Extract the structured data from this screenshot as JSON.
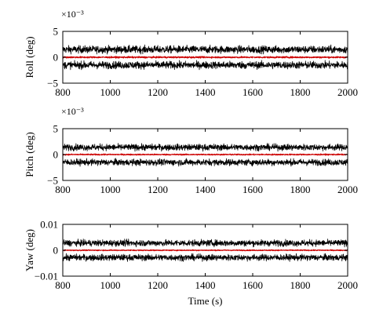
{
  "chart_data": [
    {
      "type": "line",
      "ylabel": "Roll (deg)",
      "xlabel": "",
      "multiplier_label": "×10⁻³",
      "xlim": [
        800,
        2000
      ],
      "ylim": [
        -5,
        5
      ],
      "xticks": [
        800,
        1000,
        1200,
        1400,
        1600,
        1800,
        2000
      ],
      "yticks": [
        {
          "value": 5,
          "label": "5"
        },
        {
          "value": 0,
          "label": "0"
        },
        {
          "value": -5,
          "label": "−5"
        }
      ],
      "series": [
        {
          "color": "#000000",
          "x": [
            800,
            2000
          ],
          "y": [
            1.5,
            1.5
          ],
          "noise_amplitude": 0.7
        },
        {
          "color": "#000000",
          "x": [
            800,
            2000
          ],
          "y": [
            -1.5,
            -1.5
          ],
          "noise_amplitude": 0.7
        },
        {
          "color": "#cc0000",
          "x": [
            800,
            2000
          ],
          "y": [
            0,
            0
          ],
          "noise_amplitude": 0.15
        }
      ]
    },
    {
      "type": "line",
      "ylabel": "Pitch (deg)",
      "xlabel": "",
      "multiplier_label": "×10⁻³",
      "xlim": [
        800,
        2000
      ],
      "ylim": [
        -5,
        5
      ],
      "xticks": [
        800,
        1000,
        1200,
        1400,
        1600,
        1800,
        2000
      ],
      "yticks": [
        {
          "value": 5,
          "label": "5"
        },
        {
          "value": 0,
          "label": "0"
        },
        {
          "value": -5,
          "label": "−5"
        }
      ],
      "series": [
        {
          "color": "#000000",
          "x": [
            800,
            2000
          ],
          "y": [
            1.4,
            1.4
          ],
          "noise_amplitude": 0.6
        },
        {
          "color": "#000000",
          "x": [
            800,
            2000
          ],
          "y": [
            -1.5,
            -1.5
          ],
          "noise_amplitude": 0.6
        },
        {
          "color": "#cc0000",
          "x": [
            800,
            2000
          ],
          "y": [
            0,
            0
          ],
          "noise_amplitude": 0.12
        }
      ]
    },
    {
      "type": "line",
      "ylabel": "Yaw (deg)",
      "xlabel": "Time (s)",
      "multiplier_label": "",
      "xlim": [
        800,
        2000
      ],
      "ylim": [
        -0.01,
        0.01
      ],
      "xticks": [
        800,
        1000,
        1200,
        1400,
        1600,
        1800,
        2000
      ],
      "yticks": [
        {
          "value": 0.01,
          "label": "0.01"
        },
        {
          "value": 0,
          "label": "0"
        },
        {
          "value": -0.01,
          "label": "−0.01"
        }
      ],
      "series": [
        {
          "color": "#000000",
          "x": [
            800,
            2000
          ],
          "y": [
            0.0028,
            0.0028
          ],
          "noise_amplitude": 0.0012
        },
        {
          "color": "#000000",
          "x": [
            800,
            2000
          ],
          "y": [
            -0.0028,
            -0.0028
          ],
          "noise_amplitude": 0.0012
        },
        {
          "color": "#cc0000",
          "x": [
            800,
            2000
          ],
          "y": [
            0,
            0
          ],
          "noise_amplitude": 0.0002
        }
      ]
    }
  ]
}
